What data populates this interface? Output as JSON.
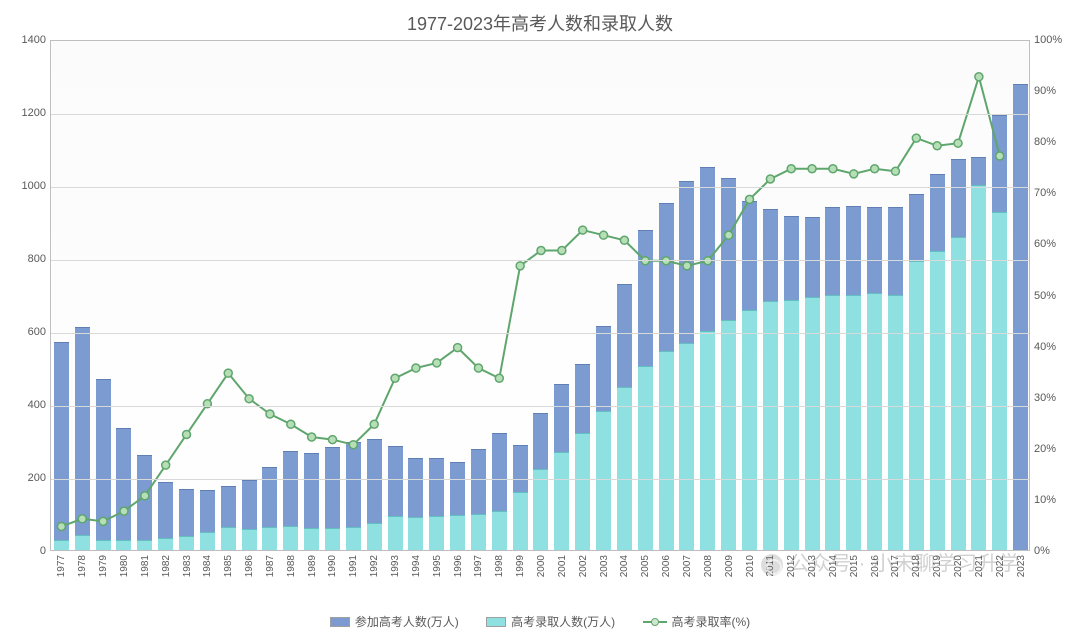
{
  "title": "1977-2023年高考人数和录取人数",
  "watermark": "公众号 · 小宋聊学习升学",
  "chart": {
    "type": "bar+line",
    "background_color": "#ffffff",
    "grid_color": "#d9d9d9",
    "border_color": "#bfbfbf",
    "text_color": "#595959",
    "title_fontsize": 18,
    "axis_fontsize": 11,
    "xaxis_fontsize": 10,
    "bar_width_ratio": 0.72,
    "y_left": {
      "min": 0,
      "max": 1400,
      "step": 200
    },
    "y_right": {
      "min": 0,
      "max": 100,
      "step": 10,
      "suffix": "%"
    },
    "series": {
      "applicants": {
        "label": "参加高考人数(万人)",
        "color": "#7b9bd1",
        "border": "#5f7fb5",
        "axis": "left"
      },
      "admitted": {
        "label": "高考录取人数(万人)",
        "color": "#8fe0e0",
        "border": "#63c0c0",
        "axis": "left"
      },
      "rate": {
        "label": "高考录取率(%)",
        "color": "#5fa66d",
        "marker_fill": "#b7dfb7",
        "marker_size": 4,
        "line_width": 2,
        "axis": "right"
      }
    },
    "years": [
      "1977",
      "1978",
      "1979",
      "1980",
      "1981",
      "1982",
      "1983",
      "1984",
      "1985",
      "1986",
      "1987",
      "1988",
      "1989",
      "1990",
      "1991",
      "1992",
      "1993",
      "1994",
      "1995",
      "1996",
      "1997",
      "1998",
      "1999",
      "2000",
      "2001",
      "2002",
      "2003",
      "2004",
      "2005",
      "2006",
      "2007",
      "2008",
      "2009",
      "2010",
      "2011",
      "2012",
      "2013",
      "2014",
      "2015",
      "2016",
      "2017",
      "2018",
      "2019",
      "2020",
      "2021",
      "2022",
      "2023"
    ],
    "applicants_values": [
      570,
      610,
      468,
      333,
      259,
      187,
      167,
      164,
      176,
      191,
      228,
      272,
      266,
      283,
      296,
      303,
      286,
      251,
      253,
      241,
      278,
      320,
      288,
      375,
      454,
      510,
      613,
      729,
      877,
      950,
      1010,
      1050,
      1020,
      957,
      933,
      915,
      912,
      939,
      942,
      940,
      940,
      975,
      1031,
      1071,
      1078,
      1193,
      1278
    ],
    "admitted_values": [
      27,
      40,
      28,
      28,
      28,
      32,
      39,
      48,
      62,
      57,
      62,
      67,
      60,
      61,
      62,
      75,
      92,
      90,
      93,
      97,
      100,
      108,
      160,
      221,
      268,
      320,
      382,
      447,
      504,
      546,
      566,
      599,
      629,
      657,
      681,
      685,
      694,
      698,
      700,
      705,
      700,
      791,
      820,
      857,
      1001,
      925,
      0
    ],
    "rate_values": [
      5,
      6.5,
      6,
      8,
      11,
      17,
      23,
      29,
      35,
      30,
      27,
      25,
      22.5,
      22,
      21,
      25,
      34,
      36,
      37,
      40,
      36,
      34,
      56,
      59,
      59,
      63,
      62,
      61,
      57,
      57,
      56,
      57,
      62,
      69,
      73,
      75,
      75,
      75,
      74,
      75,
      74.5,
      81,
      79.5,
      80,
      93,
      77.5,
      0
    ]
  },
  "legend": {
    "item1": "参加高考人数(万人)",
    "item2": "高考录取人数(万人)",
    "item3": "高考录取率(%)"
  }
}
